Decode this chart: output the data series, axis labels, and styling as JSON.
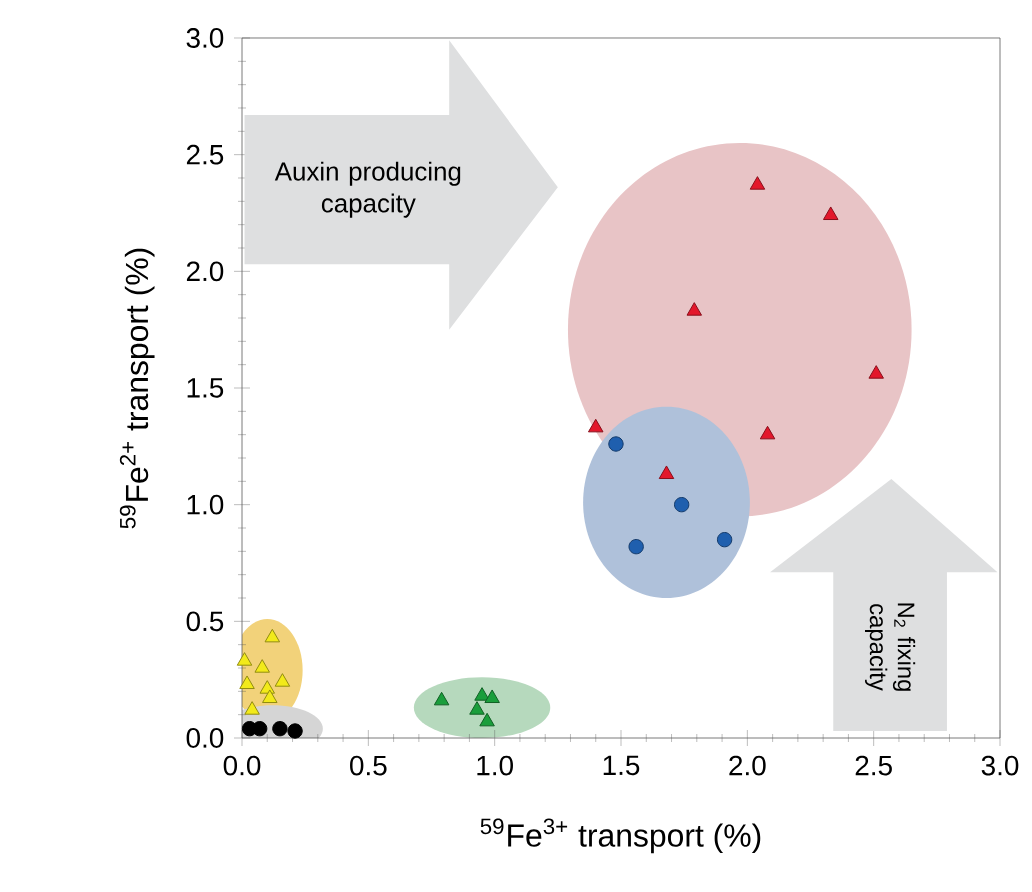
{
  "chart_data": {
    "type": "scatter",
    "xlabel": "$^{59}$Fe$^{3+}$ transport (%)",
    "ylabel": "$^{59}$Fe$^{2+}$ transport (%)",
    "xlim": [
      0,
      3
    ],
    "ylim": [
      0,
      3
    ],
    "xticks": [
      {
        "value": 0,
        "label": "0.0"
      },
      {
        "value": 0.5,
        "label": "0.5"
      },
      {
        "value": 1,
        "label": "1.0"
      },
      {
        "value": 1.5,
        "label": "1.5"
      },
      {
        "value": 2,
        "label": "2.0"
      },
      {
        "value": 2.5,
        "label": "2.5"
      },
      {
        "value": 3,
        "label": "3.0"
      }
    ],
    "yticks": [
      {
        "value": 0,
        "label": "0.0"
      },
      {
        "value": 0.5,
        "label": "0.5"
      },
      {
        "value": 1,
        "label": "1.0"
      },
      {
        "value": 1.5,
        "label": "1.5"
      },
      {
        "value": 2,
        "label": "2.0"
      },
      {
        "value": 2.5,
        "label": "2.5"
      },
      {
        "value": 3,
        "label": "3.0"
      }
    ],
    "grid": false,
    "annotations": [
      "Auxin producing capacity",
      "N$_{2}$ fixing capacity"
    ],
    "series": [
      {
        "color": "#e3172b",
        "marker": "triangle",
        "x": [
          2.04,
          2.33,
          1.79,
          2.51,
          1.4,
          2.08,
          1.68
        ],
        "values": [
          2.37,
          2.24,
          1.83,
          1.56,
          1.33,
          1.3,
          1.13
        ]
      },
      {
        "color": "#1f5fae",
        "marker": "circle",
        "x": [
          1.48,
          1.74,
          1.56,
          1.91
        ],
        "values": [
          1.26,
          1.0,
          0.82,
          0.85
        ]
      },
      {
        "color": "#f2ea1a",
        "marker": "triangle",
        "x": [
          0.12,
          0.01,
          0.08,
          0.02,
          0.16,
          0.1,
          0.11,
          0.04
        ],
        "values": [
          0.43,
          0.33,
          0.3,
          0.23,
          0.24,
          0.21,
          0.17,
          0.12
        ]
      },
      {
        "color": "#000000",
        "marker": "circle",
        "x": [
          0.03,
          0.07,
          0.15,
          0.21
        ],
        "values": [
          0.04,
          0.04,
          0.04,
          0.03
        ]
      },
      {
        "color": "#1a9e3c",
        "marker": "triangle",
        "x": [
          0.79,
          0.95,
          0.99,
          0.93,
          0.97
        ],
        "values": [
          0.16,
          0.18,
          0.17,
          0.12,
          0.07
        ]
      }
    ]
  }
}
